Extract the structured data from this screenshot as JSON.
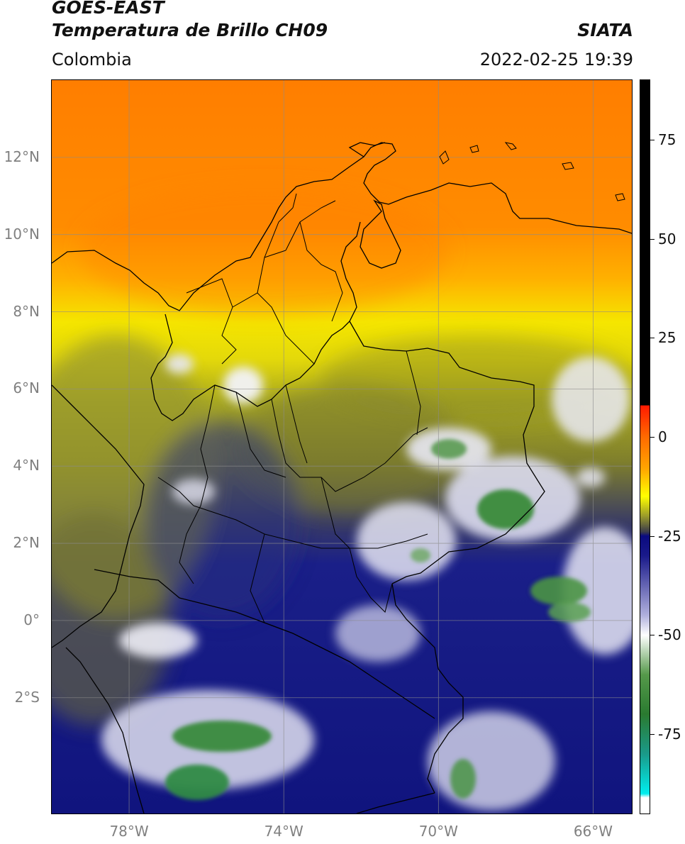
{
  "header": {
    "title_line1": "GOES-EAST",
    "title_line2": "Temperatura de Brillo CH09",
    "brand": "SIATA",
    "region": "Colombia",
    "datetime": "2022-02-25 19:39"
  },
  "map": {
    "lon_range": [
      -80,
      -65
    ],
    "lat_range": [
      -5,
      14
    ],
    "lat_labels": [
      {
        "value": 12,
        "label": "12°N"
      },
      {
        "value": 10,
        "label": "10°N"
      },
      {
        "value": 8,
        "label": "8°N"
      },
      {
        "value": 6,
        "label": "6°N"
      },
      {
        "value": 4,
        "label": "4°N"
      },
      {
        "value": 2,
        "label": "2°N"
      },
      {
        "value": 0,
        "label": "0°"
      },
      {
        "value": -2,
        "label": "2°S"
      }
    ],
    "lon_labels": [
      {
        "value": -78,
        "label": "78°W"
      },
      {
        "value": -74,
        "label": "74°W"
      },
      {
        "value": -70,
        "label": "70°W"
      },
      {
        "value": -66,
        "label": "66°W"
      }
    ],
    "gridlines": true,
    "colors": {
      "warm": "#ff8c00",
      "yellow": "#f5e600",
      "olive": "#8c8c2a",
      "navy": "#141a8a",
      "cloud_white": "#f4f4f8",
      "green": "#3f8a3a"
    }
  },
  "colorbar": {
    "range": [
      -95,
      90
    ],
    "ticks": [
      {
        "value": 75,
        "label": "75"
      },
      {
        "value": 50,
        "label": "50"
      },
      {
        "value": 25,
        "label": "25"
      },
      {
        "value": 0,
        "label": "0"
      },
      {
        "value": -25,
        "label": "-25"
      },
      {
        "value": -50,
        "label": "-50"
      },
      {
        "value": -75,
        "label": "-75"
      }
    ],
    "stops": [
      {
        "value": 90,
        "color": "#000000"
      },
      {
        "value": 8,
        "color": "#000000"
      },
      {
        "value": 7.9,
        "color": "#ff1a00"
      },
      {
        "value": 0,
        "color": "#ff6a00"
      },
      {
        "value": -8,
        "color": "#ffa500"
      },
      {
        "value": -15,
        "color": "#ffff00"
      },
      {
        "value": -20,
        "color": "#9a9a2a"
      },
      {
        "value": -24,
        "color": "#3a3a4a"
      },
      {
        "value": -25,
        "color": "#0a0a80"
      },
      {
        "value": -30,
        "color": "#1a1a8a"
      },
      {
        "value": -45,
        "color": "#b0b0dd"
      },
      {
        "value": -50,
        "color": "#ffffff"
      },
      {
        "value": -60,
        "color": "#55994a"
      },
      {
        "value": -70,
        "color": "#2a7a30"
      },
      {
        "value": -80,
        "color": "#1a9a8a"
      },
      {
        "value": -90,
        "color": "#00eeee"
      },
      {
        "value": -91,
        "color": "#ffffff"
      },
      {
        "value": -95,
        "color": "#ffffff"
      }
    ]
  }
}
